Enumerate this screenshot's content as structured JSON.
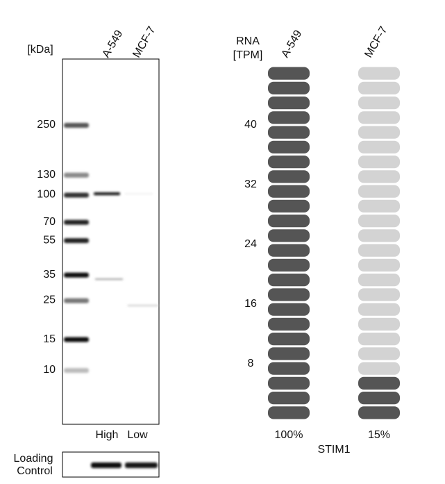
{
  "blot": {
    "unit": "[kDa]",
    "lanes": [
      "A-549",
      "MCF-7"
    ],
    "markers": [
      250,
      130,
      100,
      70,
      55,
      35,
      25,
      15,
      10
    ],
    "levels": [
      "High",
      "Low"
    ],
    "loading_control": [
      "Loading",
      "Control"
    ]
  },
  "rna": {
    "label": [
      "RNA",
      "[TPM]"
    ],
    "ticks": [
      8,
      16,
      24,
      32,
      40
    ],
    "samples": [
      {
        "name": "A-549",
        "percent": "100%"
      },
      {
        "name": "MCF-7",
        "percent": "15%"
      }
    ],
    "gene": "STIM1"
  }
}
